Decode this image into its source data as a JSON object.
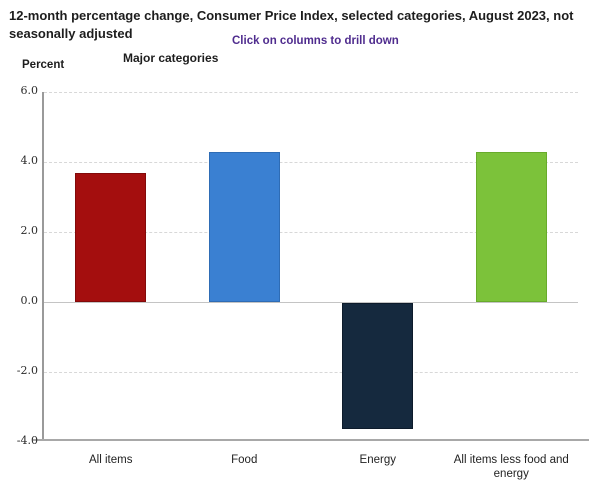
{
  "page": {
    "title": "12-month percentage change, Consumer Price Index, selected categories, August 2023, not seasonally adjusted",
    "drilldown_hint": "Click on columns to drill down",
    "chart_group_label": "Major categories",
    "y_axis_title": "Percent"
  },
  "chart_data": {
    "type": "bar",
    "title": "12-month percentage change, Consumer Price Index, selected categories, August 2023, not seasonally adjusted",
    "subtitle": "Major categories",
    "ylabel": "Percent",
    "ylim": [
      -4.0,
      6.0
    ],
    "yticks": [
      6.0,
      4.0,
      2.0,
      0.0,
      -2.0,
      -4.0
    ],
    "grid": true,
    "legend": false,
    "categories": [
      "All items",
      "Food",
      "Energy",
      "All items less food and energy"
    ],
    "values": [
      3.7,
      4.3,
      -3.6,
      4.3
    ],
    "bar_colors": [
      "#a40e0e",
      "#3a80d2",
      "#15293e",
      "#7cc23a"
    ],
    "bar_border_colors": [
      "#820a0a",
      "#2e6cb5",
      "#0d1b2b",
      "#68ab2b"
    ]
  },
  "colors": {
    "link_purple": "#4f2c8e",
    "gridline": "#d8d8d8",
    "zero_line": "#c4c4c4",
    "y_axis_line": "#9a9a9a",
    "x_axis_line": "#a8a8a8"
  }
}
